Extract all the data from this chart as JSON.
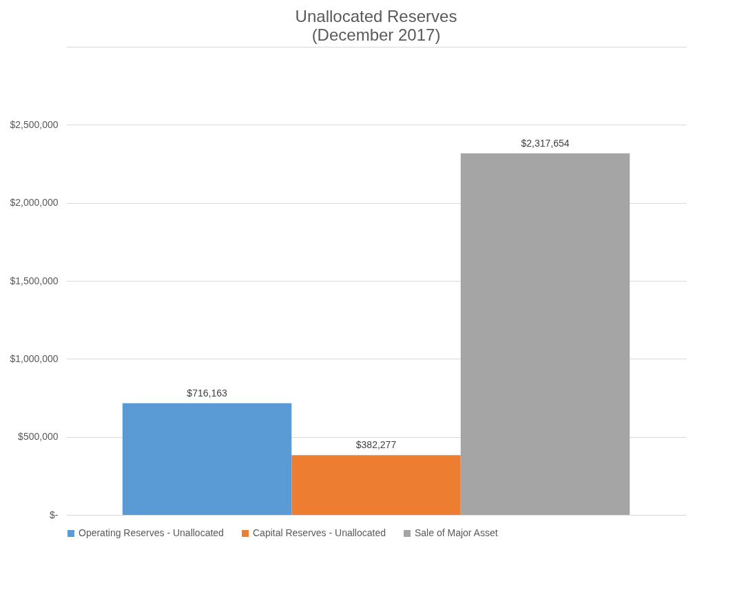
{
  "chart_data": {
    "type": "bar",
    "title": "Unallocated Reserves",
    "subtitle": "(December 2017)",
    "categories": [
      null
    ],
    "series": [
      {
        "name": "Operating Reserves - Unallocated",
        "color": "#5b9bd5",
        "values": [
          716163
        ],
        "value_labels": [
          "$716,163"
        ]
      },
      {
        "name": "Capital Reserves - Unallocated",
        "color": "#ed7d31",
        "values": [
          382277
        ],
        "value_labels": [
          "$382,277"
        ]
      },
      {
        "name": "Sale of Major Asset",
        "color": "#a5a5a5",
        "values": [
          2317654
        ],
        "value_labels": [
          "$2,317,654"
        ]
      }
    ],
    "ylim": [
      0,
      3000000
    ],
    "yticks": [
      {
        "value": 0,
        "label": "$-"
      },
      {
        "value": 500000,
        "label": "$500,000"
      },
      {
        "value": 1000000,
        "label": "$1,000,000"
      },
      {
        "value": 1500000,
        "label": "$1,500,000"
      },
      {
        "value": 2000000,
        "label": "$2,000,000"
      },
      {
        "value": 2500000,
        "label": "$2,500,000"
      },
      {
        "value": 3000000,
        "label": null
      }
    ],
    "grid": true,
    "legend": "bottom"
  }
}
